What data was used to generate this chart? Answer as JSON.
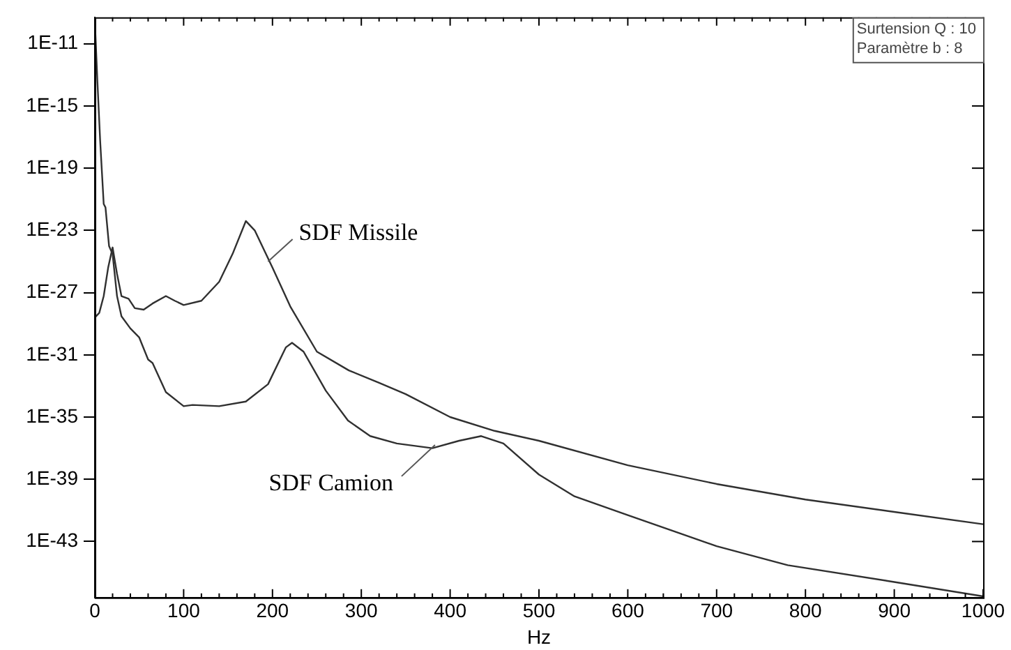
{
  "chart_data": {
    "type": "line",
    "xlabel": "Hz",
    "log": "y",
    "grid": false,
    "legend": false,
    "marker": "none",
    "line_style": "solid",
    "xlim": [
      0,
      1000
    ],
    "xticks": [
      0,
      {
        "value": 20,
        "label": null
      },
      {
        "value": 40,
        "label": null
      },
      {
        "value": 60,
        "label": null
      },
      {
        "value": 80,
        "label": null
      },
      100,
      {
        "value": 120,
        "label": null
      },
      {
        "value": 140,
        "label": null
      },
      {
        "value": 160,
        "label": null
      },
      {
        "value": 180,
        "label": null
      },
      200,
      {
        "value": 220,
        "label": null
      },
      {
        "value": 240,
        "label": null
      },
      {
        "value": 260,
        "label": null
      },
      {
        "value": 280,
        "label": null
      },
      300,
      {
        "value": 320,
        "label": null
      },
      {
        "value": 340,
        "label": null
      },
      {
        "value": 360,
        "label": null
      },
      {
        "value": 380,
        "label": null
      },
      400,
      {
        "value": 420,
        "label": null
      },
      {
        "value": 440,
        "label": null
      },
      {
        "value": 460,
        "label": null
      },
      {
        "value": 480,
        "label": null
      },
      500,
      {
        "value": 520,
        "label": null
      },
      {
        "value": 540,
        "label": null
      },
      {
        "value": 560,
        "label": null
      },
      {
        "value": 580,
        "label": null
      },
      600,
      {
        "value": 620,
        "label": null
      },
      {
        "value": 640,
        "label": null
      },
      {
        "value": 660,
        "label": null
      },
      {
        "value": 680,
        "label": null
      },
      700,
      {
        "value": 720,
        "label": null
      },
      {
        "value": 740,
        "label": null
      },
      {
        "value": 760,
        "label": null
      },
      {
        "value": 780,
        "label": null
      },
      800,
      {
        "value": 820,
        "label": null
      },
      {
        "value": 840,
        "label": null
      },
      {
        "value": 860,
        "label": null
      },
      {
        "value": 880,
        "label": null
      },
      900,
      {
        "value": 920,
        "label": null
      },
      {
        "value": 940,
        "label": null
      },
      {
        "value": 960,
        "label": null
      },
      {
        "value": 980,
        "label": null
      },
      1000
    ],
    "ylim": [
      2.5e-47,
      5e-10
    ],
    "yticks": [
      {
        "value": 1e-11,
        "label": "1E-11"
      },
      {
        "value": 1e-15,
        "label": "1E-15"
      },
      {
        "value": 1e-19,
        "label": "1E-19"
      },
      {
        "value": 1e-23,
        "label": "1E-23"
      },
      {
        "value": 1e-27,
        "label": "1E-27"
      },
      {
        "value": 1e-31,
        "label": "1E-31"
      },
      {
        "value": 1e-35,
        "label": "1E-35"
      },
      {
        "value": 1e-39,
        "label": "1E-39"
      },
      {
        "value": 1e-43,
        "label": "1E-43"
      }
    ],
    "series": [
      {
        "color": "#303030",
        "x": [
          0,
          5,
          10,
          15,
          20,
          25,
          30,
          38,
          45,
          55,
          65,
          80,
          90,
          100,
          120,
          140,
          155,
          170,
          180,
          200,
          220,
          250,
          286,
          320,
          350,
          400,
          450,
          500,
          600,
          700,
          800,
          900,
          1000
        ],
        "values": [
          2.5e-29,
          5e-29,
          6e-28,
          4e-26,
          8e-25,
          1.6e-26,
          6e-28,
          4e-28,
          1e-28,
          8e-29,
          2e-28,
          6e-28,
          3e-28,
          1.6e-28,
          3e-28,
          5e-27,
          3e-25,
          4e-23,
          1e-23,
          4e-26,
          1.3e-28,
          1.6e-31,
          1e-32,
          1.6e-33,
          3e-34,
          1e-35,
          1.3e-36,
          3e-37,
          8e-39,
          5e-40,
          5e-41,
          8e-42,
          1.3e-42
        ]
      },
      {
        "color": "#303030",
        "x": [
          0,
          3,
          6,
          10,
          12,
          16,
          20,
          25,
          30,
          40,
          50,
          60,
          65,
          80,
          100,
          110,
          140,
          170,
          195,
          215,
          222,
          235,
          260,
          285,
          310,
          340,
          380,
          410,
          435,
          460,
          500,
          540,
          600,
          700,
          780,
          900,
          1000
        ],
        "values": [
          3e-10,
          3e-14,
          6e-18,
          5e-22,
          3e-22,
          1e-24,
          3e-25,
          6e-28,
          3e-29,
          5e-30,
          1.3e-30,
          5e-32,
          3e-32,
          4e-34,
          5e-35,
          6e-35,
          5e-35,
          1e-34,
          1.3e-33,
          3e-31,
          6e-31,
          1.6e-31,
          5e-34,
          6e-36,
          6e-37,
          2e-37,
          1e-37,
          3e-37,
          6e-37,
          2e-37,
          2e-39,
          8e-41,
          5e-42,
          5e-44,
          3e-45,
          2.5e-46,
          3e-47
        ]
      }
    ],
    "annotations": [
      {
        "text": "SDF Missile",
        "x": 195,
        "y": 1e-25
      },
      {
        "text": "SDF Camion",
        "x": 383,
        "y": 1.6e-37
      },
      "Surtension Q : 10",
      "Paramètre b : 8"
    ]
  }
}
